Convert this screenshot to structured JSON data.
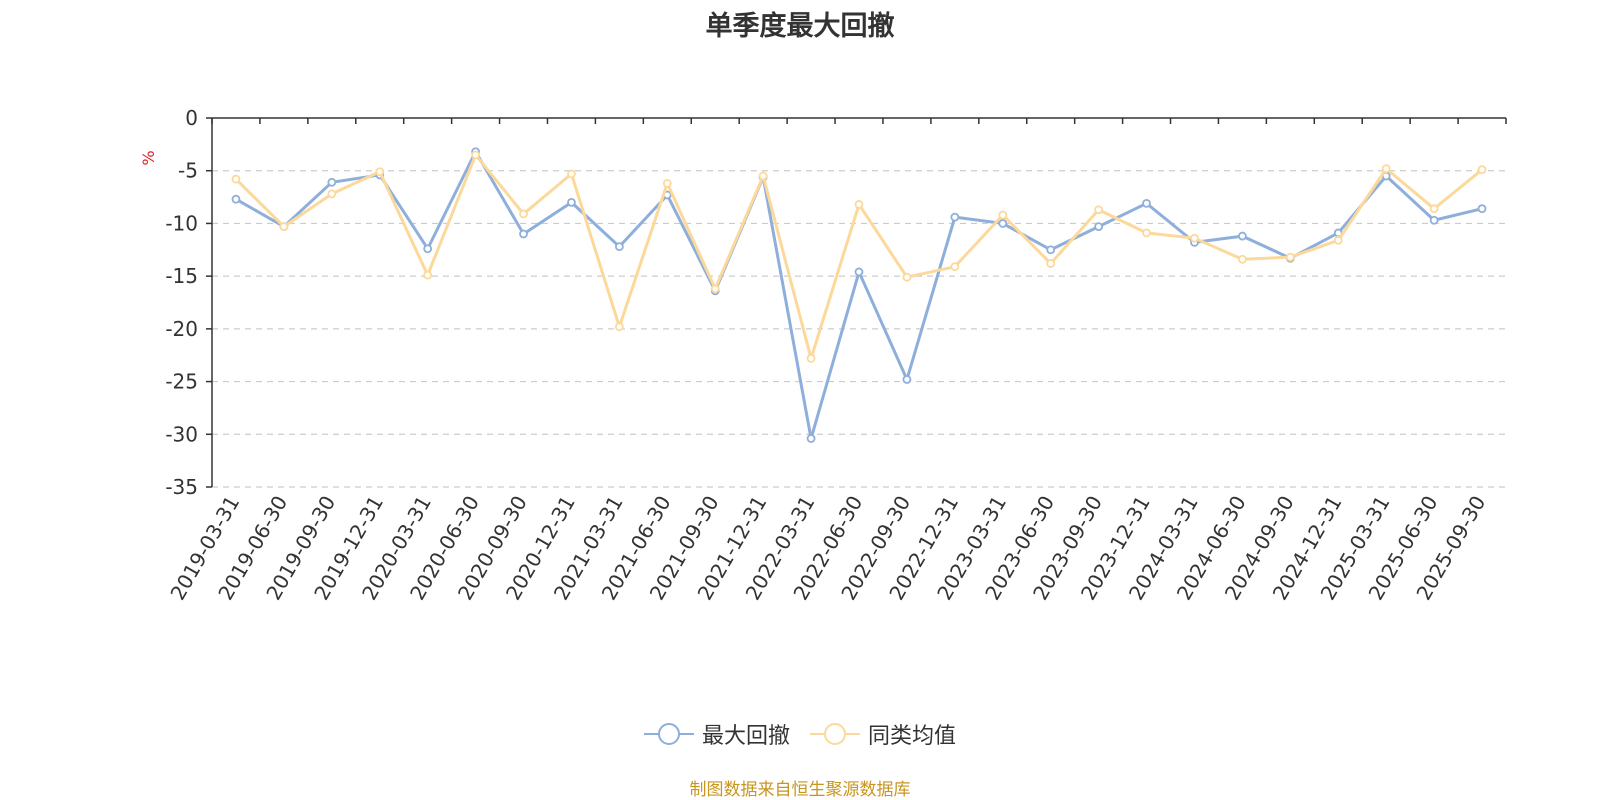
{
  "chart_data": {
    "type": "line",
    "title": "单季度最大回撤",
    "ylabel": "%",
    "ylim": [
      -35,
      0
    ],
    "yticks": [
      0,
      -5,
      -10,
      -15,
      -20,
      -25,
      -30,
      -35
    ],
    "grid": true,
    "legend_position": "bottom",
    "categories": [
      "2019-03-31",
      "2019-06-30",
      "2019-09-30",
      "2019-12-31",
      "2020-03-31",
      "2020-06-30",
      "2020-09-30",
      "2020-12-31",
      "2021-03-31",
      "2021-06-30",
      "2021-09-30",
      "2021-12-31",
      "2022-03-31",
      "2022-06-30",
      "2022-09-30",
      "2022-12-31",
      "2023-03-31",
      "2023-06-30",
      "2023-09-30",
      "2023-12-31",
      "2024-03-31",
      "2024-06-30",
      "2024-09-30",
      "2024-12-31",
      "2025-03-31",
      "2025-06-30",
      "2025-09-30"
    ],
    "series": [
      {
        "name": "最大回撤",
        "color": "#8eaedb",
        "values": [
          -7.7,
          -10.3,
          -6.1,
          -5.4,
          -12.4,
          -3.2,
          -11.0,
          -8.0,
          -12.2,
          -7.3,
          -16.4,
          -5.6,
          -30.4,
          -14.6,
          -24.8,
          -9.4,
          -10.0,
          -12.5,
          -10.3,
          -8.1,
          -11.8,
          -11.2,
          -13.3,
          -10.9,
          -5.5,
          -9.7,
          -8.6
        ]
      },
      {
        "name": "同类均值",
        "color": "#fcd99a",
        "values": [
          -5.8,
          -10.3,
          -7.2,
          -5.1,
          -14.9,
          -3.5,
          -9.1,
          -5.3,
          -19.8,
          -6.2,
          -16.2,
          -5.5,
          -22.8,
          -8.2,
          -15.1,
          -14.1,
          -9.2,
          -13.8,
          -8.7,
          -10.9,
          -11.4,
          -13.4,
          -13.2,
          -11.6,
          -4.8,
          -8.6,
          -4.9
        ]
      }
    ]
  },
  "footer": {
    "source": "制图数据来自恒生聚源数据库"
  }
}
